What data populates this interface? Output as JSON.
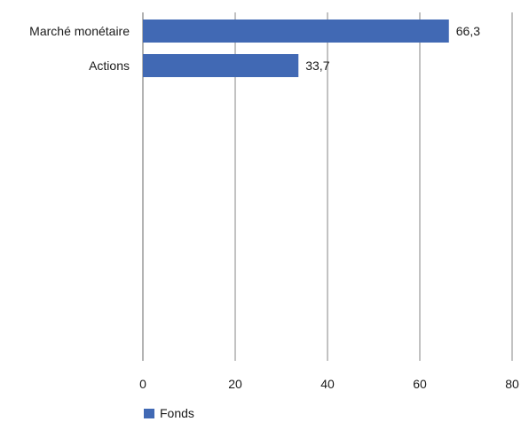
{
  "chart_data": {
    "type": "bar",
    "orientation": "horizontal",
    "title": "",
    "categories": [
      "Marché monétaire",
      "Actions"
    ],
    "series": [
      {
        "name": "Fonds",
        "values": [
          66.3,
          33.7
        ],
        "value_labels": [
          "66,3",
          "33,7"
        ],
        "color": "#4169b4"
      }
    ],
    "xlim": [
      0,
      80
    ],
    "xticks": [
      0,
      20,
      40,
      60,
      80
    ],
    "xtick_labels": [
      "0",
      "20",
      "40",
      "60",
      "80"
    ],
    "grid": "vertical",
    "legend": {
      "position": "bottom-left",
      "entries": [
        "Fonds"
      ]
    },
    "colors": {
      "bar": "#4169b4",
      "grid": "#9a9a9a",
      "axis": "#9a9a9a"
    }
  }
}
